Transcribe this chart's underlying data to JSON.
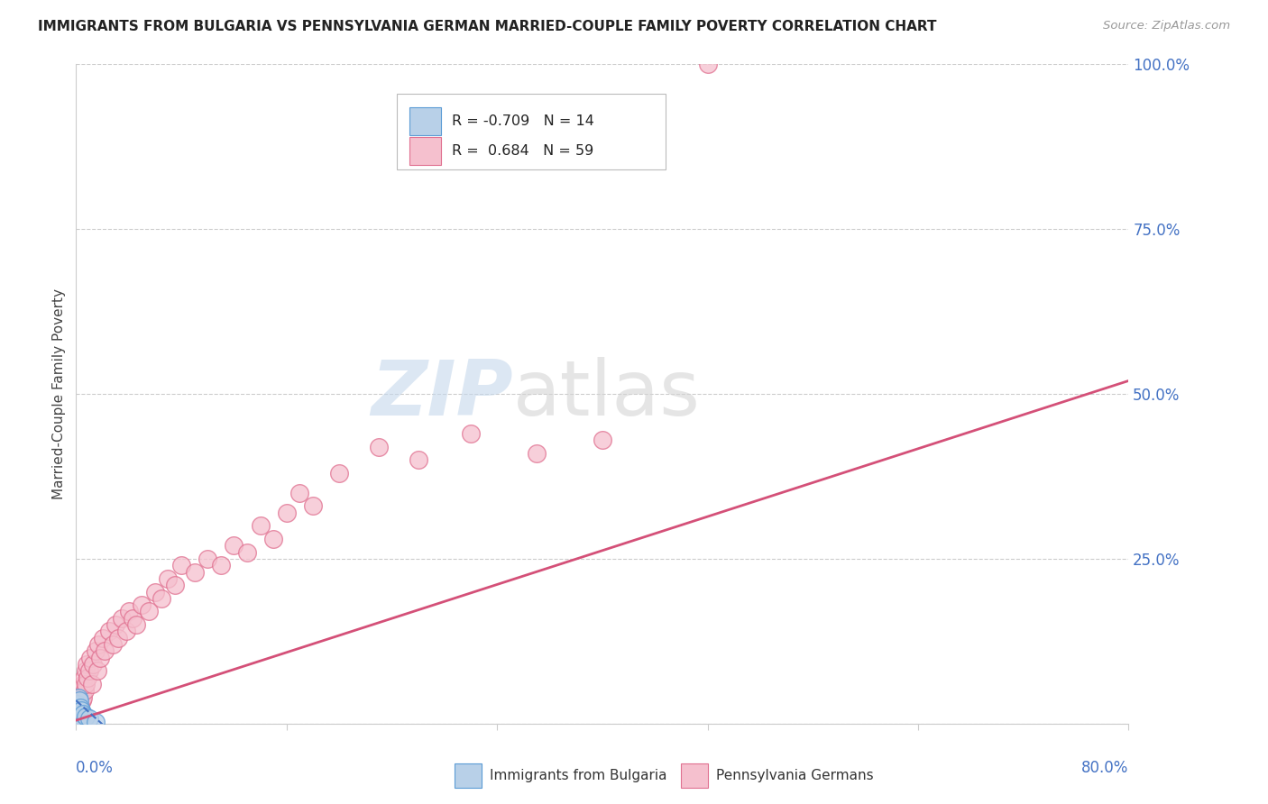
{
  "title": "IMMIGRANTS FROM BULGARIA VS PENNSYLVANIA GERMAN MARRIED-COUPLE FAMILY POVERTY CORRELATION CHART",
  "source": "Source: ZipAtlas.com",
  "ylabel": "Married-Couple Family Poverty",
  "watermark_zip": "ZIP",
  "watermark_atlas": "atlas",
  "xlim": [
    0.0,
    80.0
  ],
  "ylim": [
    0.0,
    100.0
  ],
  "yticks": [
    0,
    25,
    50,
    75,
    100
  ],
  "ytick_labels": [
    "",
    "25.0%",
    "50.0%",
    "75.0%",
    "100.0%"
  ],
  "xtick_positions": [
    0,
    16,
    32,
    48,
    64,
    80
  ],
  "legend_blue_label_r": "R = -0.709",
  "legend_blue_label_n": "N = 14",
  "legend_pink_label_r": "R =  0.684",
  "legend_pink_label_n": "N = 59",
  "legend_bottom_blue": "Immigrants from Bulgaria",
  "legend_bottom_pink": "Pennsylvania Germans",
  "bulgaria_color": "#b8d0e8",
  "bulgaria_edge_color": "#5b9bd5",
  "penn_german_color": "#f5c0ce",
  "penn_german_edge_color": "#e07090",
  "trend_blue_color": "#4472c4",
  "trend_pink_color": "#d45078",
  "background_color": "#ffffff",
  "grid_color": "#cccccc",
  "title_color": "#222222",
  "source_color": "#999999",
  "axis_label_color": "#444444",
  "ytick_color": "#4472c4",
  "xtick_color": "#4472c4",
  "bulgaria_x": [
    0.05,
    0.08,
    0.1,
    0.12,
    0.15,
    0.18,
    0.2,
    0.25,
    0.3,
    0.4,
    0.5,
    0.7,
    1.0,
    1.5
  ],
  "bulgaria_y": [
    1.5,
    2.5,
    0.5,
    3.0,
    2.0,
    4.0,
    1.0,
    3.5,
    2.5,
    2.0,
    1.5,
    1.0,
    0.8,
    0.3
  ],
  "penn_x": [
    0.1,
    0.15,
    0.2,
    0.25,
    0.3,
    0.35,
    0.4,
    0.45,
    0.5,
    0.55,
    0.6,
    0.65,
    0.7,
    0.75,
    0.8,
    0.9,
    1.0,
    1.1,
    1.2,
    1.3,
    1.5,
    1.6,
    1.7,
    1.8,
    2.0,
    2.2,
    2.5,
    2.8,
    3.0,
    3.2,
    3.5,
    3.8,
    4.0,
    4.3,
    4.6,
    5.0,
    5.5,
    6.0,
    6.5,
    7.0,
    7.5,
    8.0,
    9.0,
    10.0,
    11.0,
    12.0,
    13.0,
    14.0,
    15.0,
    16.0,
    17.0,
    18.0,
    20.0,
    23.0,
    26.0,
    30.0,
    35.0,
    40.0,
    48.0
  ],
  "penn_y": [
    1.0,
    2.0,
    1.5,
    3.0,
    4.0,
    2.5,
    5.0,
    3.5,
    6.0,
    4.0,
    7.0,
    5.0,
    8.0,
    6.0,
    9.0,
    7.0,
    8.0,
    10.0,
    6.0,
    9.0,
    11.0,
    8.0,
    12.0,
    10.0,
    13.0,
    11.0,
    14.0,
    12.0,
    15.0,
    13.0,
    16.0,
    14.0,
    17.0,
    16.0,
    15.0,
    18.0,
    17.0,
    20.0,
    19.0,
    22.0,
    21.0,
    24.0,
    23.0,
    25.0,
    24.0,
    27.0,
    26.0,
    30.0,
    28.0,
    32.0,
    35.0,
    33.0,
    38.0,
    42.0,
    40.0,
    44.0,
    41.0,
    43.0,
    100.0
  ],
  "pink_trend_x0": 0.0,
  "pink_trend_y0": 0.5,
  "pink_trend_x1": 80.0,
  "pink_trend_y1": 52.0,
  "blue_trend_x0": 0.0,
  "blue_trend_y0": 3.5,
  "blue_trend_x1": 2.5,
  "blue_trend_y1": -1.0
}
